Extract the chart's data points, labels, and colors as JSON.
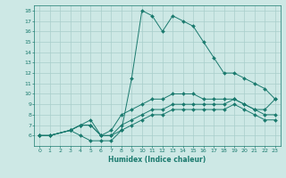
{
  "title": "",
  "xlabel": "Humidex (Indice chaleur)",
  "background_color": "#cde8e5",
  "line_color": "#1a7a6e",
  "grid_color": "#a8ceca",
  "xlim": [
    -0.5,
    23.5
  ],
  "ylim": [
    5,
    18.5
  ],
  "xticks": [
    0,
    1,
    2,
    3,
    4,
    5,
    6,
    7,
    8,
    9,
    10,
    11,
    12,
    13,
    14,
    15,
    16,
    17,
    18,
    19,
    20,
    21,
    22,
    23
  ],
  "yticks": [
    6,
    7,
    8,
    9,
    10,
    11,
    12,
    13,
    14,
    15,
    16,
    17,
    18
  ],
  "series": [
    {
      "x": [
        0,
        1,
        3,
        4,
        5,
        6,
        7,
        8,
        9,
        10,
        11,
        12,
        13,
        14,
        15,
        16,
        17,
        18,
        19,
        20,
        21,
        22,
        23
      ],
      "y": [
        6,
        6,
        6.5,
        6,
        5.5,
        5.5,
        5.5,
        6.5,
        11.5,
        18,
        17.5,
        16,
        17.5,
        17,
        16.5,
        15,
        13.5,
        12,
        12,
        11.5,
        11,
        10.5,
        9.5
      ]
    },
    {
      "x": [
        0,
        1,
        3,
        4,
        5,
        6,
        7,
        8,
        9,
        10,
        11,
        12,
        13,
        14,
        15,
        16,
        17,
        18,
        19,
        20,
        21,
        22,
        23
      ],
      "y": [
        6,
        6,
        6.5,
        7,
        7.5,
        6,
        6.5,
        8,
        8.5,
        9,
        9.5,
        9.5,
        10,
        10,
        10,
        9.5,
        9.5,
        9.5,
        9.5,
        9,
        8.5,
        8.5,
        9.5
      ]
    },
    {
      "x": [
        0,
        1,
        3,
        4,
        5,
        6,
        7,
        8,
        9,
        10,
        11,
        12,
        13,
        14,
        15,
        16,
        17,
        18,
        19,
        20,
        21,
        22,
        23
      ],
      "y": [
        6,
        6,
        6.5,
        7,
        7,
        6,
        6,
        7,
        7.5,
        8,
        8.5,
        8.5,
        9,
        9,
        9,
        9,
        9,
        9,
        9.5,
        9,
        8.5,
        8,
        8
      ]
    },
    {
      "x": [
        0,
        1,
        3,
        4,
        5,
        6,
        7,
        8,
        9,
        10,
        11,
        12,
        13,
        14,
        15,
        16,
        17,
        18,
        19,
        20,
        21,
        22,
        23
      ],
      "y": [
        6,
        6,
        6.5,
        7,
        7,
        6,
        6,
        6.5,
        7,
        7.5,
        8,
        8,
        8.5,
        8.5,
        8.5,
        8.5,
        8.5,
        8.5,
        9,
        8.5,
        8,
        7.5,
        7.5
      ]
    }
  ]
}
